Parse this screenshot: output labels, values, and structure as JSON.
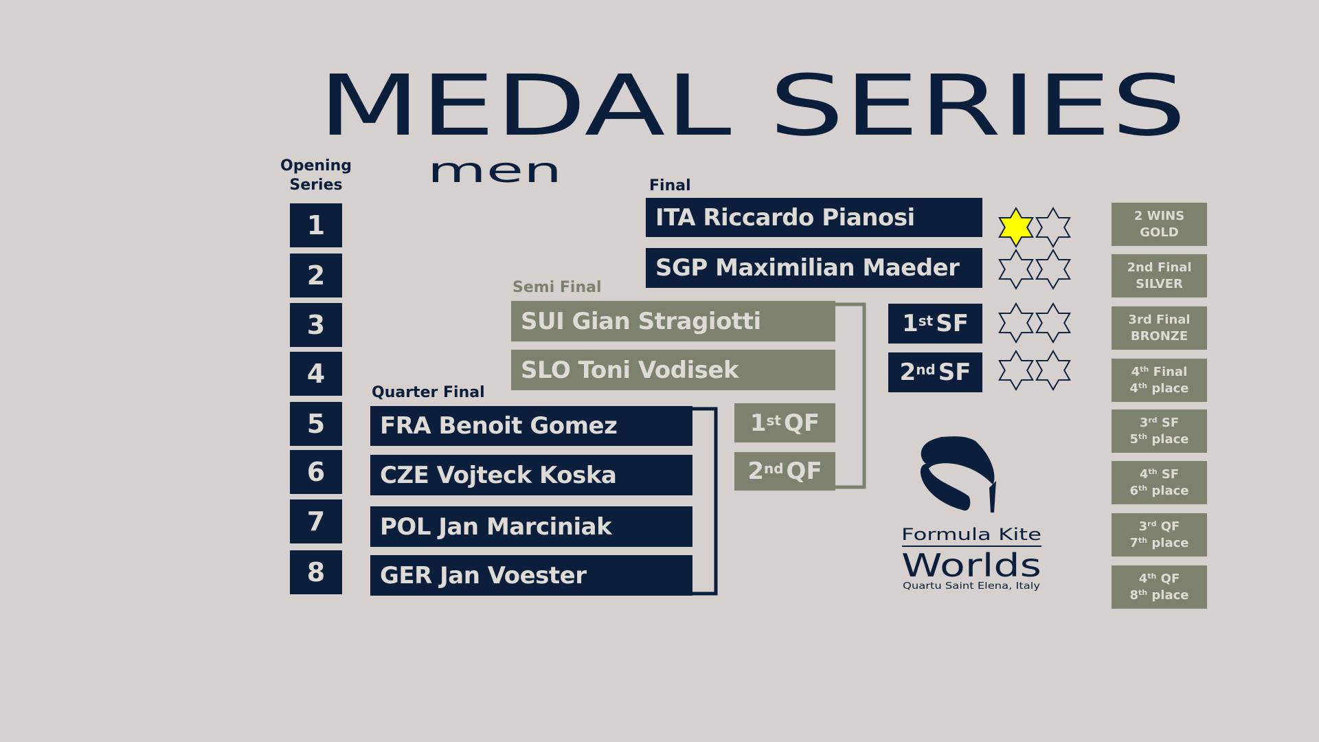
{
  "title": "MEDAL SERIES",
  "subtitle": "men",
  "opening_series": {
    "label_line1": "Opening",
    "label_line2": "Series",
    "numbers": [
      "1",
      "2",
      "3",
      "4",
      "5",
      "6",
      "7",
      "8"
    ]
  },
  "final": {
    "label": "Final",
    "riders": [
      "ITA Riccardo Pianosi",
      "SGP Maximilian Maeder"
    ]
  },
  "semi_final": {
    "label": "Semi Final",
    "riders": [
      "SUI Gian Stragiotti",
      "SLO Toni Vodisek"
    ],
    "seeds": [
      {
        "num": "1",
        "sup": "st",
        "text": "SF"
      },
      {
        "num": "2",
        "sup": "nd",
        "text": "SF"
      }
    ]
  },
  "quarter_final": {
    "label": "Quarter Final",
    "riders": [
      "FRA Benoit Gomez",
      "CZE Vojteck Koska",
      "POL Jan Marciniak",
      "GER Jan Voester"
    ],
    "seeds": [
      {
        "num": "1",
        "sup": "st",
        "text": "QF"
      },
      {
        "num": "2",
        "sup": "nd",
        "text": "QF"
      }
    ]
  },
  "wins": {
    "rows": [
      [
        true,
        false
      ],
      [
        false,
        false
      ],
      [
        false,
        false
      ],
      [
        false,
        false
      ]
    ],
    "filled_color": "#ffff00",
    "empty_color": "#d6d1cf"
  },
  "results": [
    {
      "l1": "2 WINS",
      "l1sup": "",
      "l1b": "",
      "l2": "GOLD",
      "l2sup": "",
      "l2b": ""
    },
    {
      "l1": "2nd Final",
      "l1sup": "",
      "l1b": "",
      "l2": "SILVER",
      "l2sup": "",
      "l2b": ""
    },
    {
      "l1": "3rd Final",
      "l1sup": "",
      "l1b": "",
      "l2": "BRONZE",
      "l2sup": "",
      "l2b": ""
    },
    {
      "l1": "4",
      "l1sup": "th",
      "l1b": " Final",
      "l2": "4",
      "l2sup": "th",
      "l2b": " place"
    },
    {
      "l1": "3",
      "l1sup": "rd",
      "l1b": " SF",
      "l2": "5",
      "l2sup": "th",
      "l2b": " place"
    },
    {
      "l1": "4",
      "l1sup": "th",
      "l1b": " SF",
      "l2": "6",
      "l2sup": "th",
      "l2b": " place"
    },
    {
      "l1": "3",
      "l1sup": "rd",
      "l1b": " QF",
      "l2": "7",
      "l2sup": "th",
      "l2b": " place"
    },
    {
      "l1": "4",
      "l1sup": "th",
      "l1b": " QF",
      "l2": "8",
      "l2sup": "th",
      "l2b": " place"
    }
  ],
  "logo": {
    "line1": "Formula Kite",
    "line2": "Worlds",
    "line3": "Quartu Saint Elena, Italy"
  },
  "colors": {
    "navy": "#0b1f3c",
    "olive_grey": "#7d826f",
    "background": "#d6d1cf",
    "gold_star": "#ffff00"
  }
}
